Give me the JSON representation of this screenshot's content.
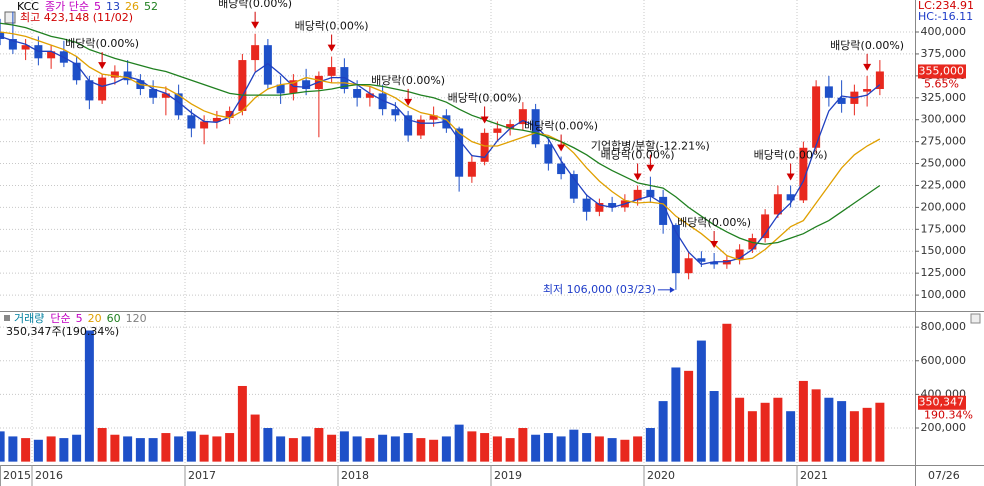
{
  "chart_data": [
    {
      "type": "candlestick",
      "title": "KCC",
      "legend_label": "종가 단순",
      "categories": [
        "2015-10",
        "2015-11",
        "2015-12",
        "2016-01",
        "2016-02",
        "2016-03",
        "2016-04",
        "2016-05",
        "2016-06",
        "2016-07",
        "2016-08",
        "2016-09",
        "2016-10",
        "2016-11",
        "2016-12",
        "2017-01",
        "2017-02",
        "2017-03",
        "2017-04",
        "2017-05",
        "2017-06",
        "2017-07",
        "2017-08",
        "2017-09",
        "2017-10",
        "2017-11",
        "2017-12",
        "2018-01",
        "2018-02",
        "2018-03",
        "2018-04",
        "2018-05",
        "2018-06",
        "2018-07",
        "2018-08",
        "2018-09",
        "2018-10",
        "2018-11",
        "2018-12",
        "2019-01",
        "2019-02",
        "2019-03",
        "2019-04",
        "2019-05",
        "2019-06",
        "2019-07",
        "2019-08",
        "2019-09",
        "2019-10",
        "2019-11",
        "2019-12",
        "2020-01",
        "2020-02",
        "2020-03",
        "2020-04",
        "2020-05",
        "2020-06",
        "2020-07",
        "2020-08",
        "2020-09",
        "2020-10",
        "2020-11",
        "2020-12",
        "2021-01",
        "2021-02",
        "2021-03",
        "2021-04",
        "2021-05",
        "2021-06",
        "2021-07"
      ],
      "open": [
        400000,
        392000,
        380000,
        385000,
        370000,
        378000,
        365000,
        345000,
        322000,
        348000,
        355000,
        345000,
        335000,
        325000,
        330000,
        305000,
        290000,
        298000,
        302000,
        310000,
        368000,
        385000,
        340000,
        330000,
        345000,
        335000,
        350000,
        360000,
        335000,
        325000,
        330000,
        312000,
        305000,
        282000,
        300000,
        305000,
        290000,
        235000,
        252000,
        285000,
        290000,
        295000,
        312000,
        272000,
        250000,
        238000,
        210000,
        195000,
        205000,
        200000,
        208000,
        220000,
        212000,
        180000,
        125000,
        142000,
        138000,
        135000,
        140000,
        152000,
        165000,
        192000,
        215000,
        208000,
        268000,
        338000,
        325000,
        318000,
        332000,
        335000
      ],
      "high": [
        415000,
        423148,
        392000,
        395000,
        385000,
        390000,
        372000,
        350000,
        352000,
        362000,
        368000,
        352000,
        345000,
        338000,
        340000,
        312000,
        305000,
        310000,
        315000,
        375000,
        398000,
        392000,
        350000,
        352000,
        358000,
        355000,
        372000,
        370000,
        345000,
        338000,
        340000,
        320000,
        310000,
        305000,
        315000,
        312000,
        292000,
        260000,
        290000,
        298000,
        300000,
        320000,
        318000,
        278000,
        258000,
        242000,
        215000,
        210000,
        212000,
        215000,
        225000,
        235000,
        220000,
        182000,
        150000,
        150000,
        148000,
        145000,
        158000,
        170000,
        198000,
        225000,
        225000,
        275000,
        345000,
        350000,
        345000,
        340000,
        350000,
        368000
      ],
      "low": [
        385000,
        375000,
        368000,
        362000,
        358000,
        360000,
        340000,
        312000,
        318000,
        340000,
        340000,
        328000,
        318000,
        305000,
        300000,
        280000,
        272000,
        290000,
        295000,
        305000,
        355000,
        335000,
        318000,
        322000,
        328000,
        280000,
        342000,
        330000,
        315000,
        315000,
        305000,
        298000,
        275000,
        278000,
        292000,
        285000,
        218000,
        228000,
        248000,
        275000,
        282000,
        288000,
        268000,
        242000,
        232000,
        205000,
        185000,
        190000,
        195000,
        195000,
        202000,
        205000,
        170000,
        106000,
        118000,
        132000,
        130000,
        130000,
        135000,
        148000,
        160000,
        188000,
        200000,
        205000,
        262000,
        315000,
        308000,
        305000,
        315000,
        328000
      ],
      "close": [
        392000,
        380000,
        385000,
        370000,
        378000,
        365000,
        345000,
        322000,
        348000,
        355000,
        345000,
        335000,
        325000,
        330000,
        305000,
        290000,
        298000,
        302000,
        310000,
        368000,
        385000,
        340000,
        330000,
        345000,
        335000,
        350000,
        360000,
        335000,
        325000,
        330000,
        312000,
        305000,
        282000,
        300000,
        305000,
        290000,
        235000,
        252000,
        285000,
        290000,
        295000,
        312000,
        272000,
        250000,
        238000,
        210000,
        195000,
        205000,
        200000,
        208000,
        220000,
        212000,
        180000,
        125000,
        142000,
        138000,
        135000,
        140000,
        152000,
        165000,
        192000,
        215000,
        208000,
        268000,
        338000,
        325000,
        318000,
        332000,
        335000,
        355000
      ],
      "up_color": "#e8281e",
      "down_color": "#1e50c8",
      "moving_averages": [
        {
          "name": "5",
          "color": "#c000c0"
        },
        {
          "name": "13",
          "color": "#2040c0",
          "values": [
            395000,
            390000,
            386000,
            378000,
            378000,
            371000,
            363000,
            344000,
            338000,
            342000,
            349000,
            345000,
            335000,
            330000,
            320000,
            308000,
            298000,
            297000,
            303000,
            327000,
            354000,
            364000,
            352000,
            338000,
            337000,
            343000,
            348000,
            348000,
            340000,
            330000,
            322000,
            316000,
            300000,
            296000,
            296000,
            298000,
            277000,
            259000,
            257000,
            276000,
            290000,
            299000,
            293000,
            278000,
            253000,
            233000,
            214000,
            203000,
            200000,
            204000,
            209000,
            213000,
            204000,
            172000,
            149000,
            135000,
            138000,
            138000,
            142000,
            152000,
            170000,
            191000,
            205000,
            230000,
            271000,
            310000,
            327000,
            325000,
            328000,
            340000
          ]
        },
        {
          "name": "26",
          "color": "#e0a000",
          "values": [
            400000,
            398000,
            395000,
            390000,
            385000,
            380000,
            372000,
            360000,
            352000,
            350000,
            348000,
            340000,
            338000,
            336000,
            328000,
            318000,
            310000,
            305000,
            302000,
            310000,
            325000,
            335000,
            340000,
            342000,
            348000,
            345000,
            342000,
            342000,
            340000,
            338000,
            332000,
            325000,
            315000,
            308000,
            305000,
            300000,
            285000,
            275000,
            270000,
            270000,
            275000,
            280000,
            285000,
            282000,
            275000,
            262000,
            245000,
            230000,
            218000,
            208000,
            205000,
            206000,
            204000,
            190000,
            180000,
            170000,
            158000,
            145000,
            140000,
            142000,
            152000,
            165000,
            178000,
            185000,
            205000,
            225000,
            245000,
            260000,
            270000,
            278000
          ]
        },
        {
          "name": "52",
          "color": "#208020",
          "values": [
            410000,
            408000,
            405000,
            400000,
            395000,
            392000,
            388000,
            380000,
            375000,
            370000,
            366000,
            362000,
            358000,
            355000,
            350000,
            345000,
            340000,
            335000,
            330000,
            328000,
            328000,
            328000,
            328000,
            330000,
            332000,
            333000,
            335000,
            338000,
            340000,
            340000,
            338000,
            335000,
            332000,
            328000,
            325000,
            320000,
            312000,
            305000,
            300000,
            295000,
            290000,
            288000,
            285000,
            280000,
            275000,
            268000,
            260000,
            250000,
            242000,
            235000,
            228000,
            225000,
            222000,
            212000,
            200000,
            190000,
            180000,
            172000,
            165000,
            160000,
            158000,
            160000,
            165000,
            170000,
            178000,
            185000,
            195000,
            205000,
            215000,
            225000
          ]
        }
      ],
      "high_note": "최고 423,148 (11/02)",
      "low_note": "최저 106,000 (03/23)",
      "lc": "LC:234.91",
      "hc": "HC:-16.11",
      "last_label": "355,000",
      "change_label": "5.65%",
      "annotations": [
        {
          "text": "배당락(0.00%)",
          "at": "2016-06"
        },
        {
          "text": "배당락(0.00%)",
          "at": "2017-06"
        },
        {
          "text": "배당락(0.00%)",
          "at": "2017-12"
        },
        {
          "text": "배당락(0.00%)",
          "at": "2018-06"
        },
        {
          "text": "배당락(0.00%)",
          "at": "2018-12"
        },
        {
          "text": "배당락(0.00%)",
          "at": "2019-06"
        },
        {
          "text": "배당락(0.00%)",
          "at": "2019-12"
        },
        {
          "text": "기업합병/분할(-12.21%)",
          "at": "2020-01"
        },
        {
          "text": "배당락(0.00%)",
          "at": "2020-06"
        },
        {
          "text": "배당락(0.00%)",
          "at": "2020-12"
        },
        {
          "text": "배당락(0.00%)",
          "at": "2021-06"
        }
      ],
      "ylim": [
        83000,
        436500
      ],
      "yticks": [
        {
          "value": 100000,
          "label": "100,000"
        },
        {
          "value": 125000,
          "label": "125,000"
        },
        {
          "value": 150000,
          "label": "150,000"
        },
        {
          "value": 175000,
          "label": "175,000"
        },
        {
          "value": 200000,
          "label": "200,000"
        },
        {
          "value": 225000,
          "label": "225,000"
        },
        {
          "value": 250000,
          "label": "250,000"
        },
        {
          "value": 275000,
          "label": "275,000"
        },
        {
          "value": 300000,
          "label": "300,000"
        },
        {
          "value": 325000,
          "label": "325,000"
        },
        {
          "value": 350000,
          "label": "350,000"
        },
        {
          "value": 375000,
          "label": "375,000"
        },
        {
          "value": 400000,
          "label": "400,000"
        }
      ],
      "xticks": [
        {
          "value": "2015-10",
          "label": "2015"
        },
        {
          "value": "2016-01",
          "label": "2016"
        },
        {
          "value": "2017-01",
          "label": "2017"
        },
        {
          "value": "2018-01",
          "label": "2018"
        },
        {
          "value": "2019-01",
          "label": "2019"
        },
        {
          "value": "2020-01",
          "label": "2020"
        },
        {
          "value": "2021-01",
          "label": "2021"
        }
      ],
      "date_label": "07/26",
      "grid": true
    },
    {
      "type": "bar",
      "title": "거래량",
      "legend_label": "단순",
      "legend": [
        {
          "name": "5",
          "color": "#c000c0"
        },
        {
          "name": "20",
          "color": "#e0a000"
        },
        {
          "name": "60",
          "color": "#208020"
        },
        {
          "name": "120",
          "color": "#808080"
        }
      ],
      "values": [
        180000,
        150000,
        140000,
        130000,
        150000,
        140000,
        160000,
        780000,
        200000,
        160000,
        150000,
        140000,
        140000,
        170000,
        150000,
        180000,
        160000,
        150000,
        170000,
        450000,
        280000,
        200000,
        150000,
        140000,
        150000,
        200000,
        160000,
        180000,
        150000,
        140000,
        160000,
        150000,
        170000,
        140000,
        130000,
        150000,
        220000,
        180000,
        170000,
        150000,
        140000,
        200000,
        160000,
        170000,
        150000,
        190000,
        170000,
        150000,
        140000,
        130000,
        150000,
        200000,
        360000,
        560000,
        540000,
        720000,
        420000,
        820000,
        380000,
        300000,
        350000,
        380000,
        300000,
        480000,
        430000,
        380000,
        360000,
        300000,
        320000,
        350347
      ],
      "value_label": "350,347주(190.34%)",
      "last_label": "350,347",
      "ratio_label": "190.34%",
      "ylim": [
        -20000,
        890000
      ],
      "yticks": [
        {
          "value": 200000,
          "label": "200,000"
        },
        {
          "value": 400000,
          "label": "400,000"
        },
        {
          "value": 600000,
          "label": "600,000"
        },
        {
          "value": 800000,
          "label": "800,000"
        }
      ],
      "grid": true
    }
  ]
}
